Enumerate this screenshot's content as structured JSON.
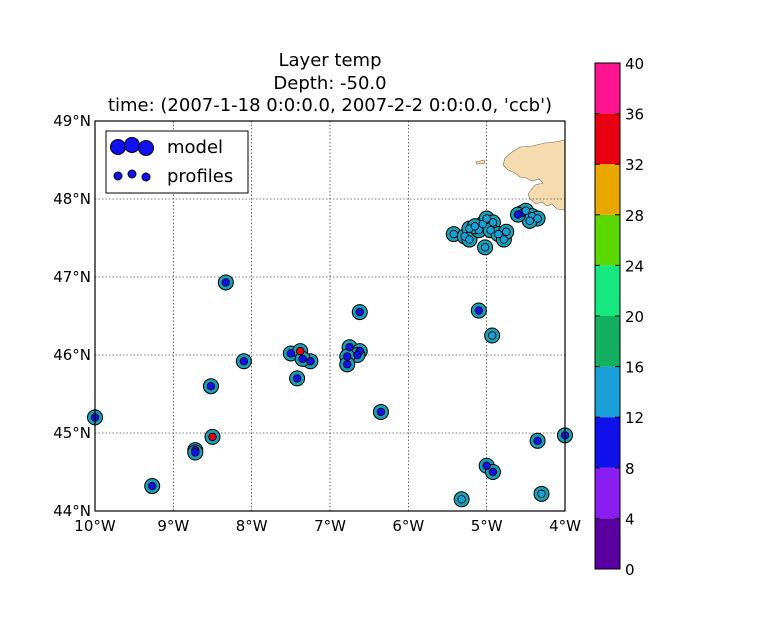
{
  "title_lines": [
    "Layer temp",
    "Depth: -50.0",
    "time: (2007-1-18 0:0:0.0, 2007-2-2 0:0:0.0, 'ccb')"
  ],
  "legend": {
    "position": "upper-left",
    "entries": [
      "model",
      "profiles"
    ]
  },
  "colorbar": {
    "ticks": [
      "0",
      "4",
      "8",
      "12",
      "16",
      "20",
      "24",
      "28",
      "32",
      "36",
      "40"
    ],
    "bins": [
      {
        "from": 0,
        "to": 4,
        "color": "#5a00a0"
      },
      {
        "from": 4,
        "to": 8,
        "color": "#8a1ef0"
      },
      {
        "from": 8,
        "to": 12,
        "color": "#1010e8"
      },
      {
        "from": 12,
        "to": 16,
        "color": "#1aa0d8"
      },
      {
        "from": 16,
        "to": 20,
        "color": "#12b060"
      },
      {
        "from": 20,
        "to": 24,
        "color": "#18e880"
      },
      {
        "from": 24,
        "to": 28,
        "color": "#5ad800"
      },
      {
        "from": 28,
        "to": 32,
        "color": "#e8a800"
      },
      {
        "from": 32,
        "to": 36,
        "color": "#e80010"
      },
      {
        "from": 36,
        "to": 40,
        "color": "#ff1490"
      }
    ]
  },
  "chart_data": {
    "type": "scatter",
    "xlim": [
      -10,
      -4
    ],
    "ylim": [
      44,
      49
    ],
    "xticks": [
      "10°W",
      "9°W",
      "8°W",
      "7°W",
      "6°W",
      "5°W",
      "4°W"
    ],
    "yticks": [
      "44°N",
      "45°N",
      "46°N",
      "47°N",
      "48°N",
      "49°N"
    ],
    "grid": true,
    "land_color": "#f4dcb0",
    "series": [
      {
        "name": "model",
        "color": "#1a9fb5",
        "points": [
          [
            -10.0,
            45.2
          ],
          [
            -9.27,
            44.32
          ],
          [
            -8.72,
            44.78
          ],
          [
            -8.72,
            44.75
          ],
          [
            -8.52,
            45.6
          ],
          [
            -8.5,
            44.95
          ],
          [
            -8.33,
            46.93
          ],
          [
            -8.1,
            45.92
          ],
          [
            -7.5,
            46.02
          ],
          [
            -7.38,
            46.05
          ],
          [
            -7.25,
            45.92
          ],
          [
            -7.42,
            45.7
          ],
          [
            -7.35,
            45.95
          ],
          [
            -6.75,
            46.1
          ],
          [
            -6.62,
            46.05
          ],
          [
            -6.65,
            46.0
          ],
          [
            -6.78,
            45.98
          ],
          [
            -6.78,
            45.88
          ],
          [
            -6.62,
            46.55
          ],
          [
            -6.35,
            45.27
          ],
          [
            -5.42,
            47.55
          ],
          [
            -5.28,
            47.52
          ],
          [
            -5.22,
            47.62
          ],
          [
            -5.22,
            47.48
          ],
          [
            -5.1,
            47.6
          ],
          [
            -5.05,
            47.68
          ],
          [
            -5.0,
            47.75
          ],
          [
            -4.92,
            47.7
          ],
          [
            -4.95,
            47.6
          ],
          [
            -4.85,
            47.55
          ],
          [
            -4.78,
            47.48
          ],
          [
            -4.75,
            47.58
          ],
          [
            -5.02,
            47.38
          ],
          [
            -5.15,
            47.65
          ],
          [
            -4.55,
            47.82
          ],
          [
            -4.5,
            47.85
          ],
          [
            -4.42,
            47.78
          ],
          [
            -4.35,
            47.75
          ],
          [
            -4.45,
            47.72
          ],
          [
            -4.6,
            47.8
          ],
          [
            -5.1,
            46.57
          ],
          [
            -4.93,
            46.25
          ],
          [
            -5.0,
            44.58
          ],
          [
            -4.92,
            44.5
          ],
          [
            -5.32,
            44.15
          ],
          [
            -4.35,
            44.9
          ],
          [
            -4.3,
            44.22
          ],
          [
            -4.0,
            44.97
          ]
        ]
      },
      {
        "name": "profiles",
        "points": [
          [
            -10.0,
            45.2,
            9
          ],
          [
            -9.27,
            44.32,
            9
          ],
          [
            -8.72,
            44.78,
            9
          ],
          [
            -8.72,
            44.75,
            9
          ],
          [
            -8.52,
            45.6,
            9
          ],
          [
            -8.5,
            44.95,
            34
          ],
          [
            -8.33,
            46.93,
            9
          ],
          [
            -8.1,
            45.92,
            9
          ],
          [
            -7.5,
            46.02,
            9
          ],
          [
            -7.38,
            46.05,
            34
          ],
          [
            -7.25,
            45.92,
            9
          ],
          [
            -7.42,
            45.7,
            9
          ],
          [
            -7.35,
            45.95,
            9
          ],
          [
            -6.75,
            46.1,
            9
          ],
          [
            -6.62,
            46.05,
            9
          ],
          [
            -6.65,
            46.0,
            9
          ],
          [
            -6.78,
            45.98,
            9
          ],
          [
            -6.78,
            45.88,
            9
          ],
          [
            -6.62,
            46.55,
            9
          ],
          [
            -6.35,
            45.27,
            9
          ],
          [
            -5.42,
            47.55,
            14
          ],
          [
            -5.28,
            47.52,
            14
          ],
          [
            -5.22,
            47.62,
            14
          ],
          [
            -5.22,
            47.48,
            14
          ],
          [
            -5.1,
            47.6,
            14
          ],
          [
            -5.05,
            47.68,
            14
          ],
          [
            -5.0,
            47.75,
            14
          ],
          [
            -4.92,
            47.7,
            14
          ],
          [
            -4.95,
            47.6,
            14
          ],
          [
            -4.85,
            47.55,
            14
          ],
          [
            -4.78,
            47.48,
            14
          ],
          [
            -4.75,
            47.58,
            14
          ],
          [
            -5.02,
            47.38,
            14
          ],
          [
            -5.15,
            47.65,
            14
          ],
          [
            -4.55,
            47.82,
            9
          ],
          [
            -4.5,
            47.85,
            14
          ],
          [
            -4.42,
            47.78,
            14
          ],
          [
            -4.35,
            47.75,
            14
          ],
          [
            -4.45,
            47.72,
            14
          ],
          [
            -4.6,
            47.8,
            9
          ],
          [
            -5.1,
            46.57,
            9
          ],
          [
            -4.93,
            46.25,
            14
          ],
          [
            -5.0,
            44.58,
            9
          ],
          [
            -4.92,
            44.5,
            9
          ],
          [
            -5.32,
            44.15,
            14
          ],
          [
            -4.35,
            44.9,
            9
          ],
          [
            -4.3,
            44.22,
            14
          ],
          [
            -4.0,
            44.97,
            9
          ]
        ]
      }
    ]
  }
}
